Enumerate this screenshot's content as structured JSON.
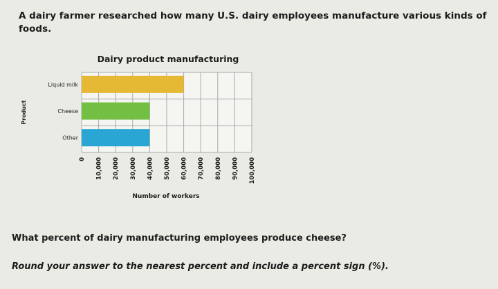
{
  "problem": {
    "intro": "A dairy farmer researched how many U.S. dairy employees manufacture various kinds of foods.",
    "question": "What percent of dairy manufacturing employees produce cheese?",
    "instruction": "Round your answer to the nearest percent and include a percent sign (%)."
  },
  "colors": {
    "liquid_milk": "#e6b935",
    "cheese": "#72bf44",
    "other": "#2aa6d4",
    "grid": "#a9a9a9",
    "plot_bg": "#f5f5f1"
  },
  "chart_data": {
    "type": "bar",
    "orientation": "horizontal",
    "title": "Dairy product manufacturing",
    "xlabel": "Number of workers",
    "ylabel": "Product",
    "categories": [
      "Liquid milk",
      "Cheese",
      "Other"
    ],
    "values": [
      60000,
      40000,
      40000
    ],
    "xlim": [
      0,
      100000
    ],
    "xticks": [
      "0",
      "10,000",
      "20,000",
      "30,000",
      "40,000",
      "50,000",
      "60,000",
      "70,000",
      "80,000",
      "90,000",
      "100,000"
    ],
    "grid": true,
    "legend": "none"
  }
}
